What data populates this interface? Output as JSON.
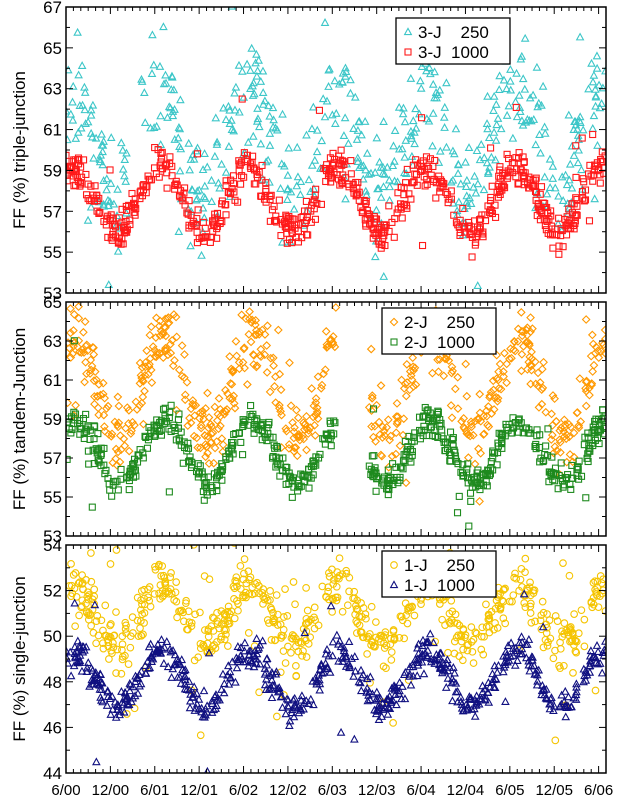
{
  "chart_data": [
    {
      "type": "scatter",
      "ylabel": "FF (%) triple-junction",
      "ylim": [
        53,
        67
      ],
      "yticks": [
        53,
        55,
        57,
        59,
        61,
        63,
        65,
        67
      ],
      "xlim": [
        0,
        73
      ],
      "grid": false,
      "legend_position": "top-right",
      "series": [
        {
          "name": "3-J    250",
          "marker": "triangle",
          "color": "#3cc6c8",
          "mean": 60.5,
          "amplitude": 2.4,
          "phase": 1.2,
          "spread": 1.4,
          "outliers": 0.12,
          "points": 520
        },
        {
          "name": "3-J  1000",
          "marker": "square",
          "color": "#ff1a1a",
          "mean": 57.6,
          "amplitude": 1.6,
          "phase": 1.2,
          "spread": 0.45,
          "outliers": 0.03,
          "points": 700
        }
      ]
    },
    {
      "type": "scatter",
      "ylabel": "FF (%) tandem-Junction",
      "ylim": [
        53,
        65
      ],
      "yticks": [
        53,
        55,
        57,
        59,
        61,
        63,
        65
      ],
      "xlim": [
        0,
        73
      ],
      "gap": [
        36.5,
        41
      ],
      "grid": false,
      "legend_position": "top-right",
      "series": [
        {
          "name": "2-J    250",
          "marker": "diamond",
          "color": "#ff9900",
          "mean": 60.6,
          "amplitude": 2.6,
          "phase": 0.9,
          "spread": 0.8,
          "outliers": 0.05,
          "points": 650
        },
        {
          "name": "2-J  1000",
          "marker": "square",
          "color": "#1e8a1e",
          "mean": 57.3,
          "amplitude": 1.6,
          "phase": 0.9,
          "spread": 0.4,
          "outliers": 0.03,
          "points": 650
        }
      ]
    },
    {
      "type": "scatter",
      "ylabel": "FF (%) single-junction",
      "ylim": [
        44,
        54
      ],
      "yticks": [
        44,
        46,
        48,
        50,
        52,
        54
      ],
      "xlim": [
        0,
        73
      ],
      "xticks": [
        "6/00",
        "12/00",
        "6/01",
        "12/01",
        "6/02",
        "12/02",
        "6/03",
        "12/03",
        "6/04",
        "12/04",
        "6/05",
        "12/05",
        "6/06"
      ],
      "grid": false,
      "legend_position": "top-right",
      "series": [
        {
          "name": "1-J    250",
          "marker": "circle",
          "color": "#f5c400",
          "mean": 50.9,
          "amplitude": 1.4,
          "phase": 1.1,
          "spread": 0.55,
          "outliers": 0.12,
          "points": 650
        },
        {
          "name": "1-J  1000",
          "marker": "triangle",
          "color": "#101080",
          "mean": 48.1,
          "amplitude": 1.2,
          "phase": 1.1,
          "spread": 0.35,
          "outliers": 0.04,
          "points": 650
        }
      ]
    }
  ]
}
